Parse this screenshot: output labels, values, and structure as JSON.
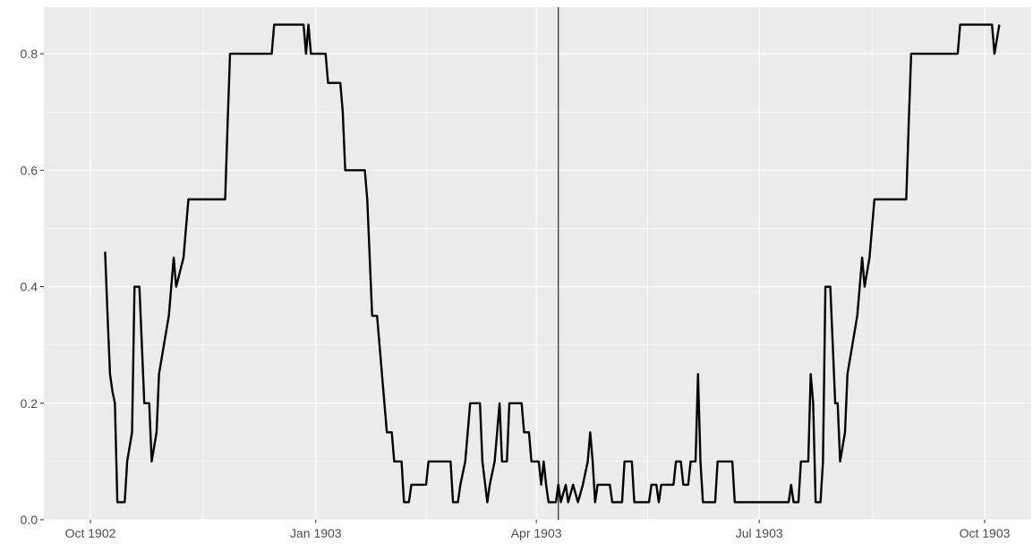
{
  "chart_data": {
    "type": "line",
    "title": "",
    "xlabel": "",
    "ylabel": "",
    "xlim": [
      "1902-09-12",
      "1903-10-20"
    ],
    "ylim": [
      0,
      0.88
    ],
    "x_ticks": [
      {
        "date": "1902-10-01",
        "label": "Oct 1902"
      },
      {
        "date": "1903-01-01",
        "label": "Jan 1903"
      },
      {
        "date": "1903-04-01",
        "label": "Apr 1903"
      },
      {
        "date": "1903-07-01",
        "label": "Jul 1903"
      },
      {
        "date": "1903-10-01",
        "label": "Oct 1903"
      }
    ],
    "y_ticks": [
      {
        "value": 0.0,
        "label": "0.0"
      },
      {
        "value": 0.2,
        "label": "0.2"
      },
      {
        "value": 0.4,
        "label": "0.4"
      },
      {
        "value": 0.6,
        "label": "0.6"
      },
      {
        "value": 0.8,
        "label": "0.8"
      }
    ],
    "grid": true,
    "legend": "none",
    "background_color": "#ebebeb",
    "grid_color": "#ffffff",
    "line_color": "#000000",
    "reference_line": {
      "orientation": "vertical",
      "date": "1903-04-10"
    },
    "series": [
      {
        "points": [
          [
            "1902-10-07",
            0.46
          ],
          [
            "1902-10-08",
            0.35
          ],
          [
            "1902-10-09",
            0.25
          ],
          [
            "1902-10-10",
            0.22
          ],
          [
            "1902-10-11",
            0.2
          ],
          [
            "1902-10-12",
            0.03
          ],
          [
            "1902-10-15",
            0.03
          ],
          [
            "1902-10-16",
            0.1
          ],
          [
            "1902-10-18",
            0.15
          ],
          [
            "1902-10-19",
            0.4
          ],
          [
            "1902-10-21",
            0.4
          ],
          [
            "1902-10-22",
            0.3
          ],
          [
            "1902-10-23",
            0.2
          ],
          [
            "1902-10-25",
            0.2
          ],
          [
            "1902-10-26",
            0.1
          ],
          [
            "1902-10-28",
            0.15
          ],
          [
            "1902-10-29",
            0.25
          ],
          [
            "1902-10-31",
            0.3
          ],
          [
            "1902-11-02",
            0.35
          ],
          [
            "1902-11-03",
            0.4
          ],
          [
            "1902-11-04",
            0.45
          ],
          [
            "1902-11-05",
            0.4
          ],
          [
            "1902-11-08",
            0.45
          ],
          [
            "1902-11-09",
            0.5
          ],
          [
            "1902-11-10",
            0.55
          ],
          [
            "1902-11-25",
            0.55
          ],
          [
            "1902-11-26",
            0.68
          ],
          [
            "1902-11-27",
            0.8
          ],
          [
            "1902-12-14",
            0.8
          ],
          [
            "1902-12-15",
            0.85
          ],
          [
            "1902-12-27",
            0.85
          ],
          [
            "1902-12-28",
            0.8
          ],
          [
            "1902-12-29",
            0.85
          ],
          [
            "1902-12-30",
            0.8
          ],
          [
            "1903-01-03",
            0.8
          ],
          [
            "1903-01-05",
            0.8
          ],
          [
            "1903-01-06",
            0.75
          ],
          [
            "1903-01-11",
            0.75
          ],
          [
            "1903-01-12",
            0.7
          ],
          [
            "1903-01-13",
            0.6
          ],
          [
            "1903-01-21",
            0.6
          ],
          [
            "1903-01-22",
            0.55
          ],
          [
            "1903-01-23",
            0.45
          ],
          [
            "1903-01-24",
            0.35
          ],
          [
            "1903-01-26",
            0.35
          ],
          [
            "1903-01-27",
            0.3
          ],
          [
            "1903-01-28",
            0.25
          ],
          [
            "1903-01-29",
            0.2
          ],
          [
            "1903-01-30",
            0.15
          ],
          [
            "1903-02-01",
            0.15
          ],
          [
            "1903-02-02",
            0.1
          ],
          [
            "1903-02-05",
            0.1
          ],
          [
            "1903-02-06",
            0.03
          ],
          [
            "1903-02-08",
            0.03
          ],
          [
            "1903-02-09",
            0.06
          ],
          [
            "1903-02-15",
            0.06
          ],
          [
            "1903-02-16",
            0.1
          ],
          [
            "1903-02-25",
            0.1
          ],
          [
            "1903-02-26",
            0.03
          ],
          [
            "1903-02-28",
            0.03
          ],
          [
            "1903-03-01",
            0.06
          ],
          [
            "1903-03-03",
            0.1
          ],
          [
            "1903-03-05",
            0.2
          ],
          [
            "1903-03-09",
            0.2
          ],
          [
            "1903-03-10",
            0.1
          ],
          [
            "1903-03-12",
            0.03
          ],
          [
            "1903-03-13",
            0.06
          ],
          [
            "1903-03-15",
            0.1
          ],
          [
            "1903-03-16",
            0.15
          ],
          [
            "1903-03-17",
            0.2
          ],
          [
            "1903-03-18",
            0.1
          ],
          [
            "1903-03-20",
            0.1
          ],
          [
            "1903-03-21",
            0.2
          ],
          [
            "1903-03-26",
            0.2
          ],
          [
            "1903-03-27",
            0.15
          ],
          [
            "1903-03-29",
            0.15
          ],
          [
            "1903-03-30",
            0.1
          ],
          [
            "1903-04-02",
            0.1
          ],
          [
            "1903-04-03",
            0.06
          ],
          [
            "1903-04-04",
            0.1
          ],
          [
            "1903-04-05",
            0.06
          ],
          [
            "1903-04-06",
            0.03
          ],
          [
            "1903-04-09",
            0.03
          ],
          [
            "1903-04-10",
            0.06
          ],
          [
            "1903-04-11",
            0.03
          ],
          [
            "1903-04-13",
            0.06
          ],
          [
            "1903-04-14",
            0.03
          ],
          [
            "1903-04-16",
            0.06
          ],
          [
            "1903-04-18",
            0.03
          ],
          [
            "1903-04-20",
            0.06
          ],
          [
            "1903-04-22",
            0.1
          ],
          [
            "1903-04-23",
            0.15
          ],
          [
            "1903-04-24",
            0.1
          ],
          [
            "1903-04-25",
            0.03
          ],
          [
            "1903-04-26",
            0.06
          ],
          [
            "1903-05-01",
            0.06
          ],
          [
            "1903-05-02",
            0.03
          ],
          [
            "1903-05-06",
            0.03
          ],
          [
            "1903-05-07",
            0.1
          ],
          [
            "1903-05-10",
            0.1
          ],
          [
            "1903-05-11",
            0.03
          ],
          [
            "1903-05-17",
            0.03
          ],
          [
            "1903-05-18",
            0.06
          ],
          [
            "1903-05-20",
            0.06
          ],
          [
            "1903-05-21",
            0.03
          ],
          [
            "1903-05-22",
            0.06
          ],
          [
            "1903-05-27",
            0.06
          ],
          [
            "1903-05-28",
            0.1
          ],
          [
            "1903-05-30",
            0.1
          ],
          [
            "1903-05-31",
            0.06
          ],
          [
            "1903-06-02",
            0.06
          ],
          [
            "1903-06-03",
            0.1
          ],
          [
            "1903-06-05",
            0.1
          ],
          [
            "1903-06-06",
            0.25
          ],
          [
            "1903-06-07",
            0.1
          ],
          [
            "1903-06-08",
            0.03
          ],
          [
            "1903-06-13",
            0.03
          ],
          [
            "1903-06-14",
            0.1
          ],
          [
            "1903-06-20",
            0.1
          ],
          [
            "1903-06-21",
            0.03
          ],
          [
            "1903-07-13",
            0.03
          ],
          [
            "1903-07-14",
            0.06
          ],
          [
            "1903-07-15",
            0.03
          ],
          [
            "1903-07-17",
            0.03
          ],
          [
            "1903-07-18",
            0.1
          ],
          [
            "1903-07-21",
            0.1
          ],
          [
            "1903-07-22",
            0.25
          ],
          [
            "1903-07-23",
            0.2
          ],
          [
            "1903-07-24",
            0.03
          ],
          [
            "1903-07-26",
            0.03
          ],
          [
            "1903-07-27",
            0.1
          ],
          [
            "1903-07-28",
            0.4
          ],
          [
            "1903-07-30",
            0.4
          ],
          [
            "1903-07-31",
            0.3
          ],
          [
            "1903-08-01",
            0.2
          ],
          [
            "1903-08-02",
            0.2
          ],
          [
            "1903-08-03",
            0.1
          ],
          [
            "1903-08-05",
            0.15
          ],
          [
            "1903-08-06",
            0.25
          ],
          [
            "1903-08-08",
            0.3
          ],
          [
            "1903-08-10",
            0.35
          ],
          [
            "1903-08-11",
            0.4
          ],
          [
            "1903-08-12",
            0.45
          ],
          [
            "1903-08-13",
            0.4
          ],
          [
            "1903-08-15",
            0.45
          ],
          [
            "1903-08-16",
            0.5
          ],
          [
            "1903-08-17",
            0.55
          ],
          [
            "1903-08-30",
            0.55
          ],
          [
            "1903-08-31",
            0.68
          ],
          [
            "1903-09-01",
            0.8
          ],
          [
            "1903-09-20",
            0.8
          ],
          [
            "1903-09-21",
            0.85
          ],
          [
            "1903-10-04",
            0.85
          ],
          [
            "1903-10-05",
            0.8
          ],
          [
            "1903-10-07",
            0.85
          ]
        ]
      }
    ]
  }
}
